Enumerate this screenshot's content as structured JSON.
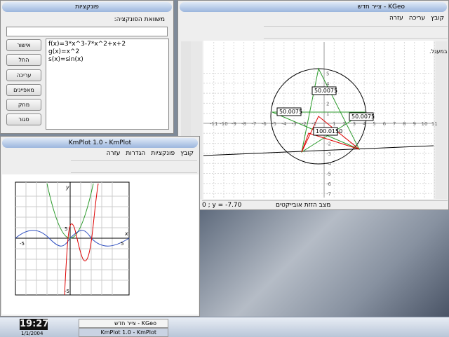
{
  "function_dialog": {
    "title": "פונקציות",
    "equation_label": "משוואת הפונקציה:",
    "functions": [
      "f(x)=3*x^3-7*x^2+x+2",
      "g(x)=x^2",
      "s(x)=sin(x)"
    ],
    "buttons": [
      "אישור",
      "החל",
      "עריכה",
      "מאפיינים",
      "מחק",
      "סגור"
    ]
  },
  "kgeo": {
    "title": "צייר חדש - KGeo",
    "menu": [
      "קובץ",
      "עריכה",
      "עזרה"
    ],
    "caption": "זוית השעטנת על הקשת הארוכה, שווה למחצית הזוית המרכזית במעגל.",
    "angle_labels": [
      "50.0075",
      "50.0075",
      "50.0075",
      "100.0150"
    ],
    "x_ticks": [
      -11,
      -10,
      -9,
      -8,
      -7,
      -6,
      -5,
      -4,
      -3,
      -2,
      -1,
      1,
      2,
      3,
      4,
      5,
      6,
      7,
      8,
      9,
      10,
      11
    ],
    "y_ticks": [
      5,
      4,
      3,
      2,
      1,
      -1,
      -2,
      -3,
      -4,
      -5,
      -6,
      -7
    ],
    "status_mode": "מצב הזזת אובייקטים",
    "status_coords": "0 ; y = -7.70"
  },
  "kmplot": {
    "title": "KmPlot 1.0 - KmPlot",
    "menu": [
      "קובץ",
      "פונקציות",
      "הגדרות",
      "עזרה"
    ],
    "x_axis_label": "x",
    "y_axis_label": "y",
    "x_tick_labels": [
      "-5",
      "5"
    ],
    "y_tick_labels": [
      "5",
      "-5"
    ]
  },
  "taskbar": {
    "clock": "19:27",
    "date": "1/1/2004",
    "tasks": [
      "צייר חדש - KGeo",
      "KmPlot 1.0 - KmPlot"
    ]
  }
}
